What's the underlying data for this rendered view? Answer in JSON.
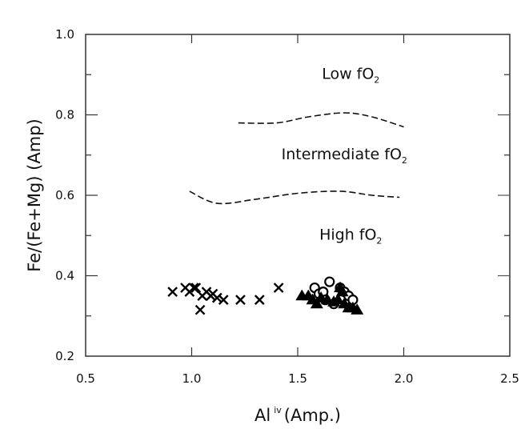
{
  "chart_data": {
    "type": "scatter",
    "title": "",
    "xlabel": "Al iv (Amp.)",
    "xlabel_main": "Al",
    "xlabel_sup": "iv",
    "xlabel_rest": "(Amp.)",
    "ylabel": "Fe/(Fe+Mg) (Amp)",
    "xlim": [
      0.5,
      2.5
    ],
    "ylim": [
      0.2,
      1.0
    ],
    "x_ticks": [
      0.5,
      1.0,
      1.5,
      2.0,
      2.5
    ],
    "x_tick_labels": [
      "0.5",
      "1.0",
      "1.5",
      "2.0",
      "2.5"
    ],
    "y_ticks": [
      0.2,
      0.4,
      0.6,
      0.8,
      1.0
    ],
    "y_tick_labels": [
      "0.2",
      "0.4",
      "0.6",
      "0.8",
      "1.0"
    ],
    "y_minor_ticks": [
      0.3,
      0.5,
      0.7,
      0.9
    ],
    "grid": false,
    "legend": null,
    "annotations": [
      {
        "text": "Low fO",
        "sub": "2",
        "x": 1.75,
        "y": 0.89
      },
      {
        "text": "Intermediate fO",
        "sub": "2",
        "x": 1.72,
        "y": 0.69
      },
      {
        "text": "High fO",
        "sub": "2",
        "x": 1.75,
        "y": 0.49
      }
    ],
    "boundary_lines": [
      {
        "name": "Low/Intermediate boundary",
        "style": "dashed",
        "points": [
          [
            1.22,
            0.78
          ],
          [
            1.4,
            0.78
          ],
          [
            1.55,
            0.795
          ],
          [
            1.72,
            0.805
          ],
          [
            1.85,
            0.795
          ],
          [
            2.0,
            0.77
          ]
        ]
      },
      {
        "name": "Intermediate/High boundary",
        "style": "dashed",
        "points": [
          [
            0.99,
            0.61
          ],
          [
            1.12,
            0.58
          ],
          [
            1.3,
            0.59
          ],
          [
            1.5,
            0.605
          ],
          [
            1.7,
            0.61
          ],
          [
            1.85,
            0.6
          ],
          [
            1.98,
            0.595
          ]
        ]
      }
    ],
    "series": [
      {
        "name": "cross",
        "marker": "x",
        "points": [
          [
            0.91,
            0.36
          ],
          [
            0.97,
            0.37
          ],
          [
            0.99,
            0.36
          ],
          [
            1.01,
            0.37
          ],
          [
            1.02,
            0.37
          ],
          [
            1.04,
            0.315
          ],
          [
            1.05,
            0.35
          ],
          [
            1.07,
            0.36
          ],
          [
            1.09,
            0.35
          ],
          [
            1.1,
            0.355
          ],
          [
            1.12,
            0.345
          ],
          [
            1.15,
            0.34
          ],
          [
            1.23,
            0.34
          ],
          [
            1.32,
            0.34
          ],
          [
            1.41,
            0.37
          ]
        ]
      },
      {
        "name": "open circle",
        "marker": "circle-open",
        "points": [
          [
            1.58,
            0.37
          ],
          [
            1.6,
            0.355
          ],
          [
            1.62,
            0.36
          ],
          [
            1.65,
            0.385
          ],
          [
            1.67,
            0.33
          ],
          [
            1.7,
            0.37
          ],
          [
            1.72,
            0.36
          ],
          [
            1.74,
            0.35
          ],
          [
            1.76,
            0.34
          ],
          [
            1.63,
            0.34
          ]
        ]
      },
      {
        "name": "filled triangle",
        "marker": "triangle-filled",
        "points": [
          [
            1.52,
            0.35
          ],
          [
            1.55,
            0.35
          ],
          [
            1.57,
            0.34
          ],
          [
            1.59,
            0.33
          ],
          [
            1.61,
            0.345
          ],
          [
            1.64,
            0.34
          ],
          [
            1.67,
            0.335
          ],
          [
            1.7,
            0.37
          ],
          [
            1.71,
            0.36
          ],
          [
            1.72,
            0.33
          ],
          [
            1.74,
            0.32
          ],
          [
            1.76,
            0.32
          ],
          [
            1.78,
            0.315
          ],
          [
            1.69,
            0.34
          ]
        ]
      }
    ]
  }
}
